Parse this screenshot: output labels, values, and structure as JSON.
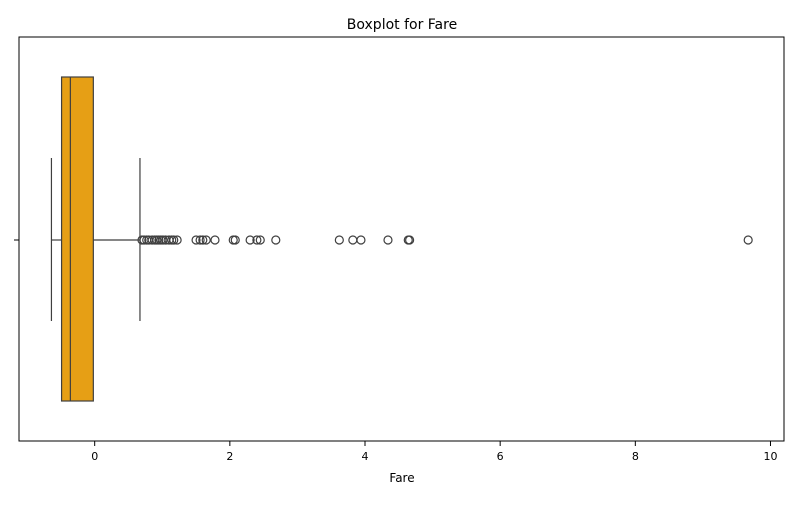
{
  "colors": {
    "box_fill": "#E69F15",
    "line": "#3f3f3f",
    "frame": "#000000",
    "background": "#ffffff"
  },
  "chart_data": {
    "type": "box",
    "orientation": "horizontal",
    "title": "Boxplot for Fare",
    "xlabel": "Fare",
    "ylabel": "",
    "xlim": [
      -1.12,
      10.2
    ],
    "xticks": [
      0,
      2,
      4,
      6,
      8,
      10
    ],
    "xtick_labels": [
      "0",
      "2",
      "4",
      "6",
      "8",
      "10"
    ],
    "grid": false,
    "legend": "none",
    "box": {
      "whisker_low": -0.64,
      "q1": -0.49,
      "median": -0.36,
      "q3": -0.02,
      "whisker_high": 0.67
    },
    "outliers": [
      0.7,
      0.73,
      0.77,
      0.8,
      0.85,
      0.89,
      0.92,
      0.95,
      0.98,
      1.01,
      1.05,
      1.1,
      1.14,
      1.17,
      1.22,
      1.5,
      1.56,
      1.6,
      1.65,
      1.78,
      2.05,
      2.08,
      2.3,
      2.4,
      2.45,
      2.68,
      3.62,
      3.82,
      3.94,
      4.34,
      4.64,
      4.66,
      9.67
    ]
  }
}
